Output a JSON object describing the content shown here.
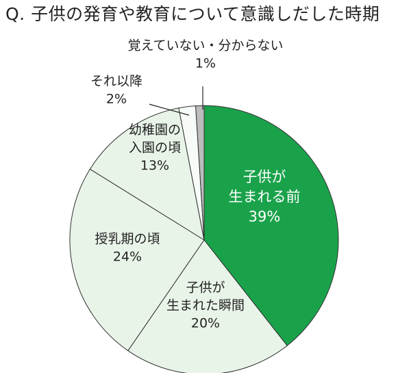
{
  "chart_data": {
    "type": "pie",
    "title": "Q. 子供の発育や教育について意識しだした時期",
    "start": "top",
    "direction": "clockwise",
    "slices": [
      {
        "lines": [
          "子供が",
          "生まれる前"
        ],
        "value": 39,
        "label": "39%",
        "color": "#1aa24b",
        "text_color": "#ffffff"
      },
      {
        "lines": [
          "子供が",
          "生まれた瞬間"
        ],
        "value": 20,
        "label": "20%",
        "color": "#e9f4e9",
        "text_color": "#222222"
      },
      {
        "lines": [
          "授乳期の頃"
        ],
        "value": 24,
        "label": "24%",
        "color": "#e9f4e9",
        "text_color": "#222222"
      },
      {
        "lines": [
          "幼稚園の",
          "入園の頃"
        ],
        "value": 13,
        "label": "13%",
        "color": "#e9f4e9",
        "text_color": "#222222"
      },
      {
        "lines": [
          "それ以降"
        ],
        "value": 2,
        "label": "2%",
        "color": "#f7fbf7",
        "text_color": "#222222"
      },
      {
        "lines": [
          "覚えていない・分からない"
        ],
        "value": 1,
        "label": "1%",
        "color": "#bcbcbc",
        "text_color": "#222222"
      }
    ]
  }
}
